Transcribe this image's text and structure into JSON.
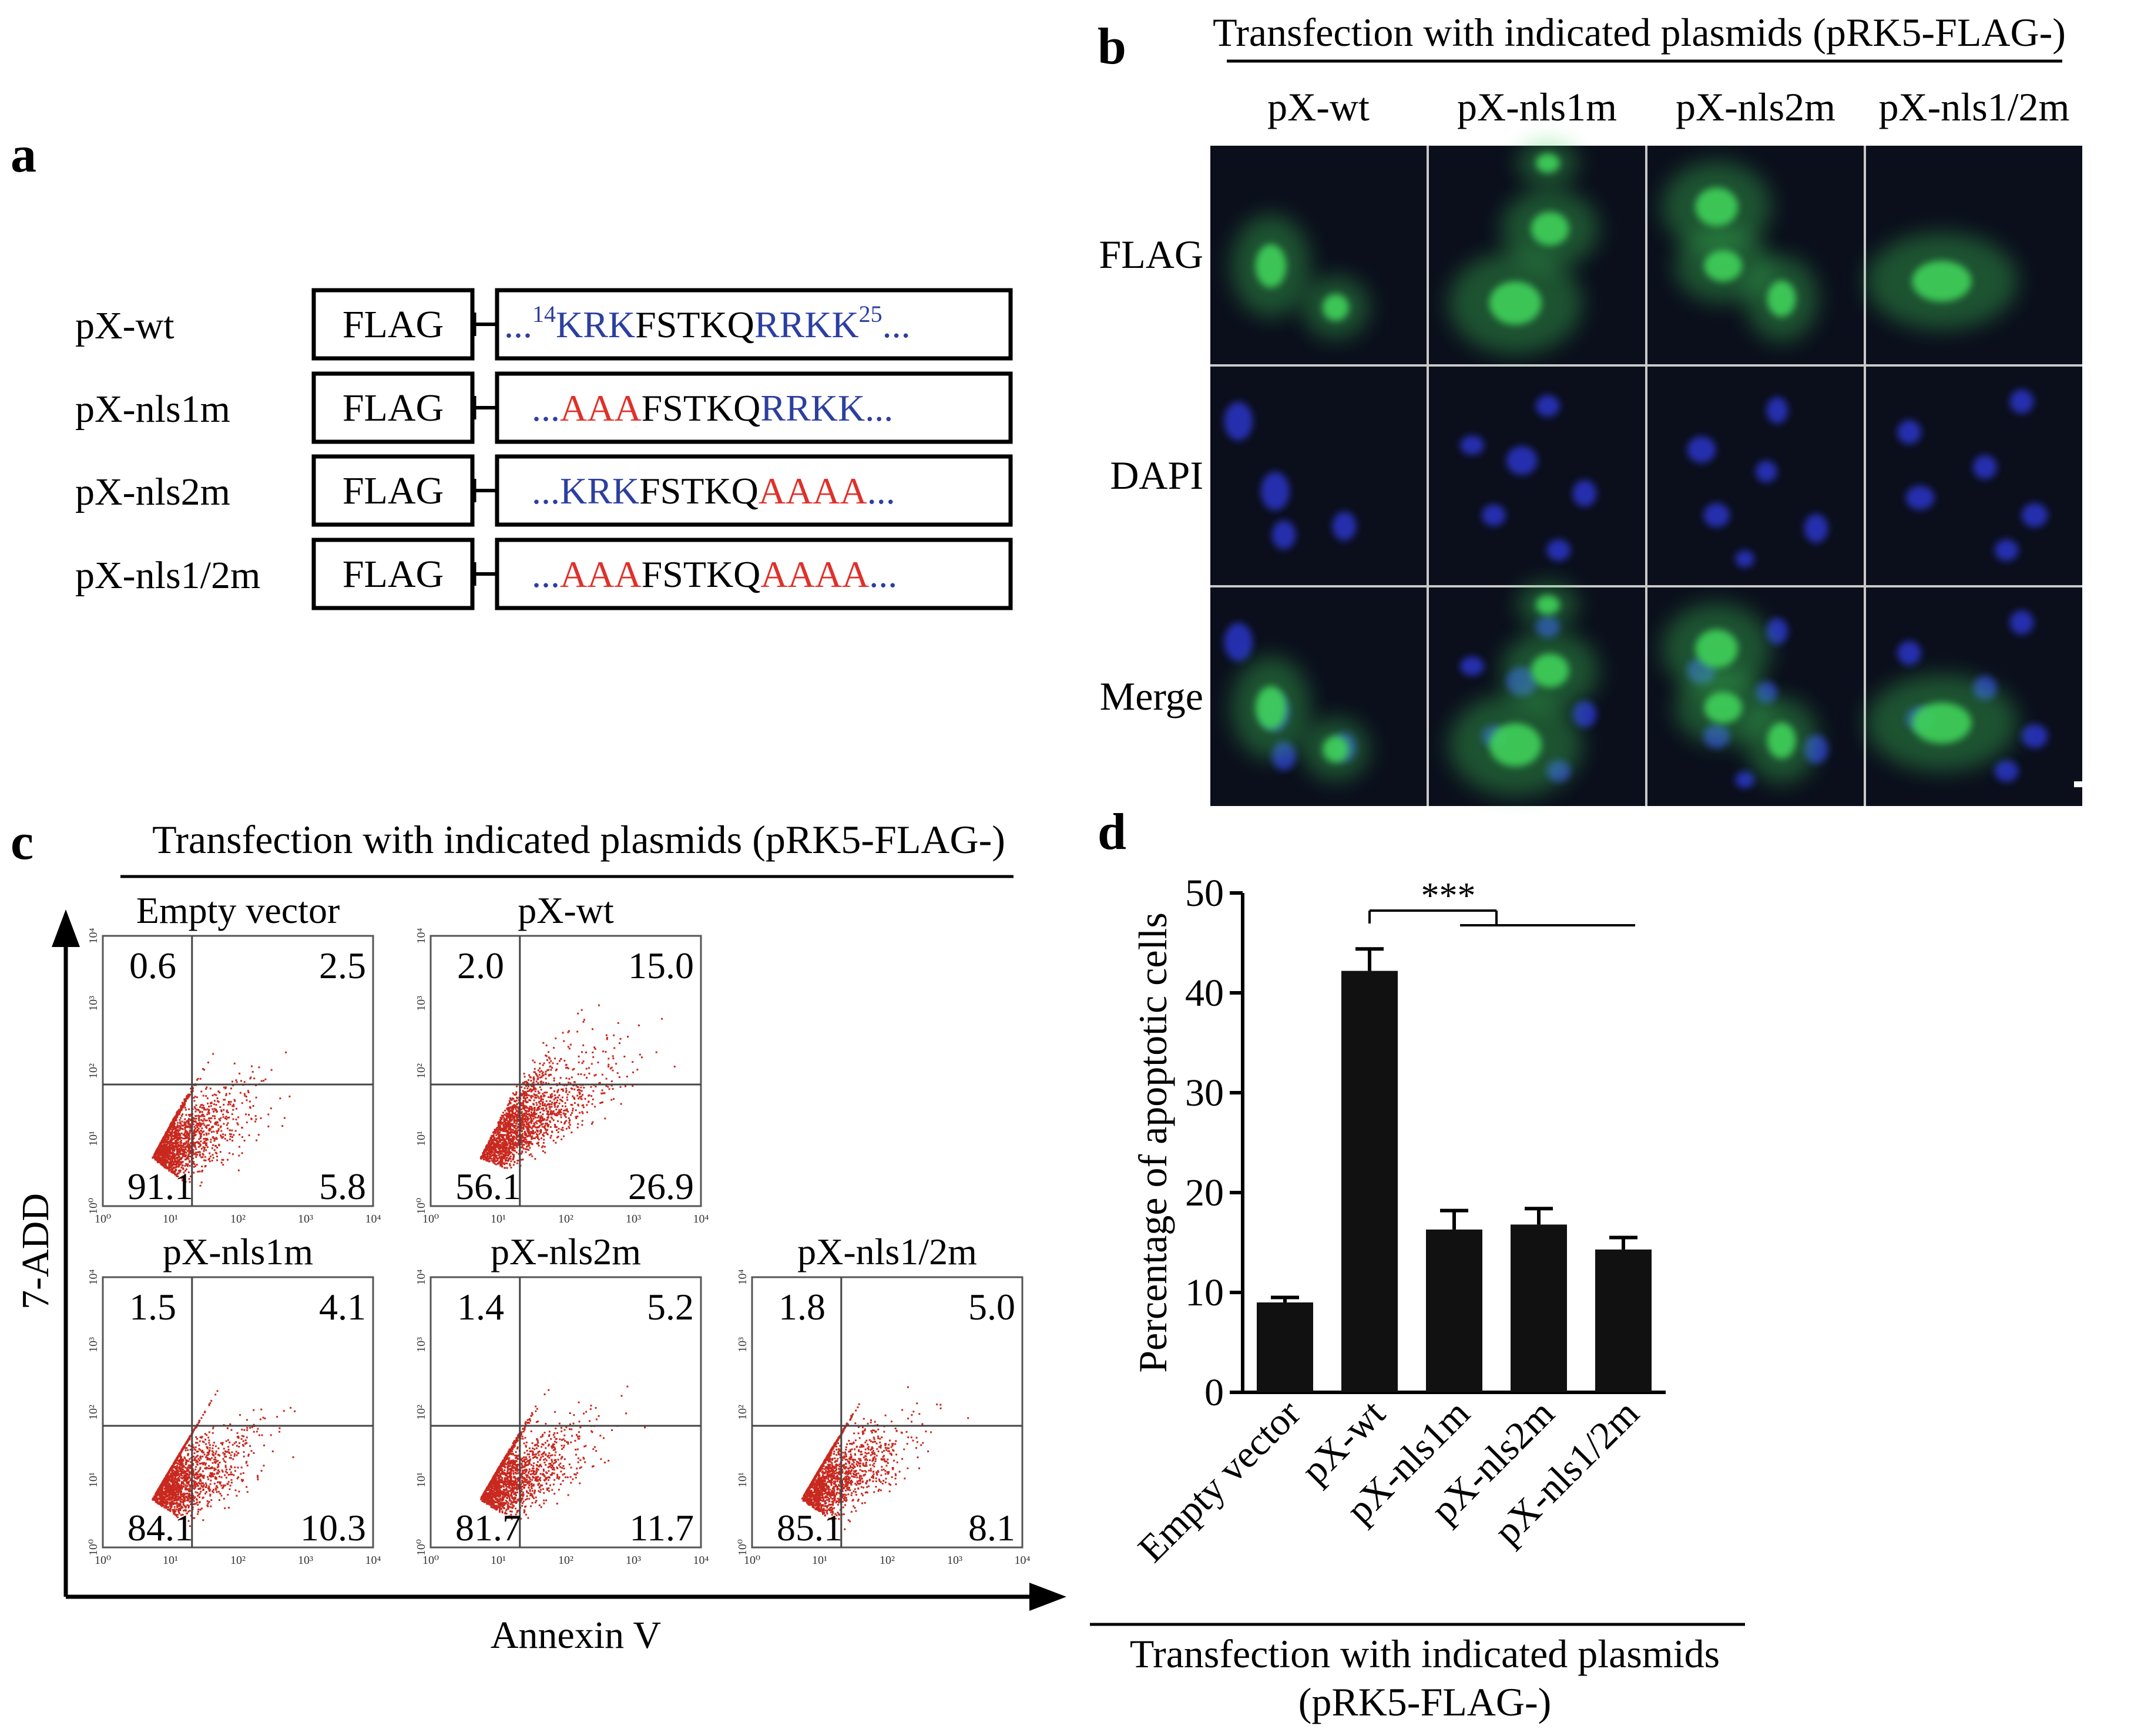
{
  "colors": {
    "nls_blue": "#2c3fa0",
    "mutant_red": "#e0302a",
    "bar_fill": "#111111",
    "dot_red": "#c8281e",
    "flag_green": "#3fd25a",
    "dapi_blue": "#2a35c8",
    "micro_bg": "#0b0f1c"
  },
  "panel_a": {
    "letter": "a",
    "rows": [
      {
        "label": "pX-wt",
        "flag": "FLAG",
        "prefix_dots": "...",
        "sup_start": "14",
        "nls1": "KRK",
        "nls1_mut": false,
        "mid": "FSTKQ",
        "nls2": "RRKK",
        "nls2_mut": false,
        "sup_end": "25",
        "suffix_dots": "..."
      },
      {
        "label": "pX-nls1m",
        "flag": "FLAG",
        "prefix_dots": "...",
        "sup_start": "",
        "nls1": "AAA",
        "nls1_mut": true,
        "mid": "FSTKQ",
        "nls2": "RRKK",
        "nls2_mut": false,
        "sup_end": "",
        "suffix_dots": "..."
      },
      {
        "label": "pX-nls2m",
        "flag": "FLAG",
        "prefix_dots": "...",
        "sup_start": "",
        "nls1": "KRK",
        "nls1_mut": false,
        "mid": "FSTKQ",
        "nls2": "AAAA",
        "nls2_mut": true,
        "sup_end": "",
        "suffix_dots": "..."
      },
      {
        "label": "pX-nls1/2m",
        "flag": "FLAG",
        "prefix_dots": "...",
        "sup_start": "",
        "nls1": "AAA",
        "nls1_mut": true,
        "mid": "FSTKQ",
        "nls2": "AAAA",
        "nls2_mut": true,
        "sup_end": "",
        "suffix_dots": "..."
      }
    ]
  },
  "panel_b": {
    "letter": "b",
    "title": "Transfection with indicated plasmids (pRK5-FLAG-)",
    "columns": [
      "pX-wt",
      "pX-nls1m",
      "pX-nls2m",
      "pX-nls1/2m"
    ],
    "rows": [
      "FLAG",
      "DAPI",
      "Merge"
    ]
  },
  "panel_c": {
    "letter": "c",
    "title": "Transfection with indicated plasmids (pRK5-FLAG-)",
    "y_axis_label": "7-ADD",
    "x_axis_label": "Annexin V",
    "axis_ticks": [
      "10⁰",
      "10¹",
      "10²",
      "10³",
      "10⁴"
    ],
    "plots": [
      {
        "title": "Empty vector",
        "ul": "0.6",
        "ur": "2.5",
        "ll": "91.1",
        "lr": "5.8",
        "spread": 0.55
      },
      {
        "title": "pX-wt",
        "ul": "2.0",
        "ur": "15.0",
        "ll": "56.1",
        "lr": "26.9",
        "spread": 1.0
      },
      {
        "title": "pX-nls1m",
        "ul": "1.5",
        "ur": "4.1",
        "ll": "84.1",
        "lr": "10.3",
        "spread": 0.62
      },
      {
        "title": "pX-nls2m",
        "ul": "1.4",
        "ur": "5.2",
        "ll": "81.7",
        "lr": "11.7",
        "spread": 0.66
      },
      {
        "title": "pX-nls1/2m",
        "ul": "1.8",
        "ur": "5.0",
        "ll": "85.1",
        "lr": "8.1",
        "spread": 0.63
      }
    ]
  },
  "panel_d": {
    "letter": "d",
    "significance": "***",
    "x_title_line1": "Transfection with indicated plasmids",
    "x_title_line2": "(pRK5-FLAG-)"
  },
  "chart_data": {
    "type": "bar",
    "title": "",
    "categories": [
      "Empty vector",
      "pX-wt",
      "pX-nls1m",
      "pX-nls2m",
      "pX-nls1/2m"
    ],
    "values": [
      9.0,
      42.2,
      16.3,
      16.8,
      14.3
    ],
    "errors": [
      0.5,
      2.2,
      1.9,
      1.6,
      1.2
    ],
    "ylabel": "Percentage of apoptotic cells",
    "xlabel": "Transfection with indicated plasmids (pRK5-FLAG-)",
    "ylim": [
      0,
      50
    ],
    "yticks": [
      0,
      10,
      20,
      30,
      40,
      50
    ],
    "grid": false
  }
}
